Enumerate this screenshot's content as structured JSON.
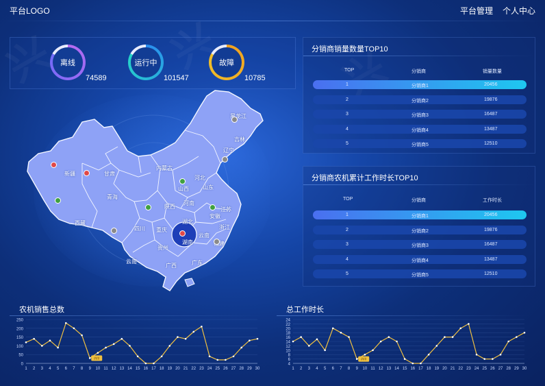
{
  "header": {
    "logo": "平台LOGO",
    "nav": [
      "平台管理",
      "个人中心"
    ]
  },
  "status": [
    {
      "label": "离线",
      "value": "74589",
      "colors": [
        "#6f6af8",
        "#b86bf0"
      ]
    },
    {
      "label": "运行中",
      "value": "101547",
      "colors": [
        "#26d6c6",
        "#2a8cf0"
      ]
    },
    {
      "label": "故障",
      "value": "10785",
      "colors": [
        "#f0c02a",
        "#f0a020"
      ]
    }
  ],
  "map": {
    "fill": "#8ea2f6",
    "labels": [
      {
        "name": "新疆"
      },
      {
        "name": "西藏"
      },
      {
        "name": "青海"
      },
      {
        "name": "甘肃"
      },
      {
        "name": "内蒙古"
      },
      {
        "name": "黑龙江"
      },
      {
        "name": "吉林"
      },
      {
        "name": "辽宁"
      },
      {
        "name": "山西"
      },
      {
        "name": "河北"
      },
      {
        "name": "山东"
      },
      {
        "name": "陕西"
      },
      {
        "name": "河南"
      },
      {
        "name": "江苏"
      },
      {
        "name": "安徽"
      },
      {
        "name": "四川"
      },
      {
        "name": "重庆"
      },
      {
        "name": "湖北"
      },
      {
        "name": "浙江"
      },
      {
        "name": "贵州"
      },
      {
        "name": "湖南"
      },
      {
        "name": "云南"
      },
      {
        "name": "福建"
      },
      {
        "name": "广西"
      },
      {
        "name": "广东"
      },
      {
        "name": "云南"
      }
    ]
  },
  "table1": {
    "title": "分销商销量数量TOP10",
    "headers": [
      "TOP",
      "分销商",
      "销量数量"
    ],
    "rows": [
      [
        "1",
        "分销商1",
        "20456"
      ],
      [
        "2",
        "分销商2",
        "19876"
      ],
      [
        "3",
        "分销商3",
        "16487"
      ],
      [
        "4",
        "分销商4",
        "13487"
      ],
      [
        "5",
        "分销商5",
        "12510"
      ]
    ]
  },
  "table2": {
    "title": "分销商农机累计工作时长TOP10",
    "headers": [
      "TOP",
      "分销商",
      "工作时长"
    ],
    "rows": [
      [
        "1",
        "分销商1",
        "20456"
      ],
      [
        "2",
        "分销商2",
        "19876"
      ],
      [
        "3",
        "分销商3",
        "16487"
      ],
      [
        "4",
        "分销商4",
        "13487"
      ],
      [
        "5",
        "分销商5",
        "12510"
      ]
    ]
  },
  "chart_data": [
    {
      "type": "line",
      "title": "农机销售总数",
      "x": [
        1,
        2,
        3,
        4,
        5,
        6,
        7,
        8,
        9,
        10,
        11,
        12,
        13,
        14,
        15,
        16,
        17,
        18,
        19,
        20,
        21,
        22,
        23,
        24,
        25,
        26,
        27,
        28,
        29,
        30
      ],
      "values": [
        120,
        140,
        100,
        130,
        90,
        230,
        200,
        160,
        30,
        60,
        90,
        110,
        140,
        100,
        40,
        0,
        0,
        40,
        100,
        150,
        140,
        180,
        210,
        40,
        20,
        20,
        40,
        90,
        130,
        140
      ],
      "y_ticks": [
        "0",
        "50",
        "100",
        "150",
        "200",
        "250"
      ],
      "ylim": [
        0,
        250
      ],
      "line_color": "#f0c040",
      "tooltip": "###"
    },
    {
      "type": "line",
      "title": "总工作时长",
      "x": [
        1,
        2,
        3,
        4,
        5,
        6,
        7,
        8,
        9,
        10,
        11,
        12,
        13,
        14,
        15,
        16,
        17,
        18,
        19,
        20,
        21,
        22,
        23,
        24,
        25,
        26,
        27,
        28,
        29,
        30
      ],
      "values": [
        14,
        16,
        12,
        15,
        10,
        20,
        18,
        16,
        6,
        8,
        10,
        14,
        16,
        14,
        6,
        4,
        4,
        8,
        12,
        16,
        16,
        20,
        22,
        8,
        6,
        6,
        8,
        14,
        16,
        18
      ],
      "y_ticks": [
        "4",
        "6",
        "8",
        "10",
        "12",
        "14",
        "16",
        "18",
        "20",
        "22",
        "24"
      ],
      "ylim": [
        4,
        24
      ],
      "line_color": "#f0c040",
      "tooltip": "###"
    }
  ]
}
